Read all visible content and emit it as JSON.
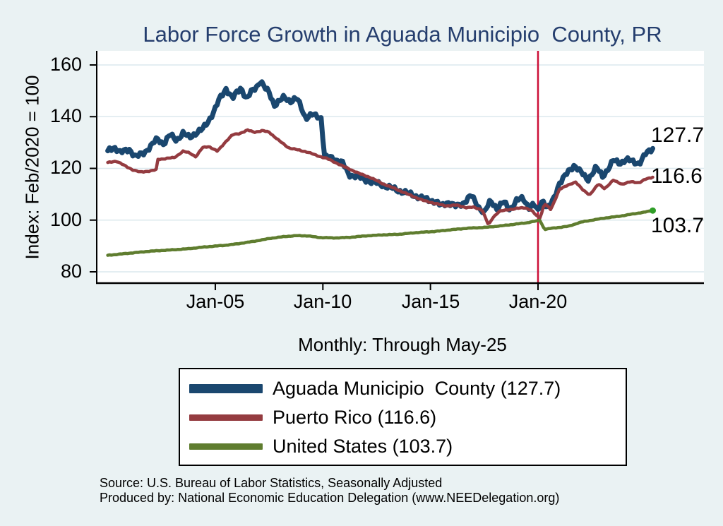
{
  "page": {
    "background": "#eaf2f3"
  },
  "chart_data": {
    "type": "line",
    "title": "Labor Force Growth in Aguada Municipio  County, PR",
    "title_color": "#253e6e",
    "subtitle": "Monthly: Through May-25",
    "ylabel": "Index: Feb/2020 = 100",
    "ylim": [
      80,
      160
    ],
    "x_range": [
      2000.0,
      2025.333
    ],
    "grid": true,
    "grid_color": "#dce8ee",
    "legend_position": "bottom",
    "yticks": [
      "160",
      "140",
      "120",
      "100",
      "80"
    ],
    "xticks": [
      {
        "t": 2005.0,
        "label": "Jan-05"
      },
      {
        "t": 2010.0,
        "label": "Jan-10"
      },
      {
        "t": 2015.0,
        "label": "Jan-15"
      },
      {
        "t": 2020.0,
        "label": "Jan-20"
      }
    ],
    "event_line": {
      "t": 2020.0,
      "color": "#cc1038"
    },
    "series": [
      {
        "name": "Aguada Municipio County",
        "legend_label": "Aguada Municipio  County (127.7)",
        "end_label": "127.7",
        "color": "#1a476f",
        "width": 7,
        "noise": 1.1,
        "points": [
          [
            2000.0,
            126.8
          ],
          [
            2000.3,
            128.3
          ],
          [
            2000.6,
            126.0
          ],
          [
            2001.0,
            127.5
          ],
          [
            2001.3,
            124.3
          ],
          [
            2001.7,
            126.2
          ],
          [
            2002.0,
            128.5
          ],
          [
            2002.3,
            131.5
          ],
          [
            2002.6,
            129.5
          ],
          [
            2002.9,
            133.0
          ],
          [
            2003.2,
            131.0
          ],
          [
            2003.5,
            133.5
          ],
          [
            2003.8,
            132.0
          ],
          [
            2004.0,
            133.2
          ],
          [
            2004.4,
            135.0
          ],
          [
            2004.8,
            140.0
          ],
          [
            2005.0,
            143.0
          ],
          [
            2005.2,
            147.0
          ],
          [
            2005.5,
            150.9
          ],
          [
            2005.8,
            146.8
          ],
          [
            2006.0,
            149.5
          ],
          [
            2006.2,
            151.4
          ],
          [
            2006.45,
            146.5
          ],
          [
            2006.7,
            150.0
          ],
          [
            2006.9,
            151.5
          ],
          [
            2007.1,
            153.8
          ],
          [
            2007.3,
            151.0
          ],
          [
            2007.5,
            149.5
          ],
          [
            2007.75,
            144.5
          ],
          [
            2008.0,
            146.0
          ],
          [
            2008.2,
            147.6
          ],
          [
            2008.5,
            146.0
          ],
          [
            2008.8,
            147.0
          ],
          [
            2009.0,
            143.5
          ],
          [
            2009.2,
            139.5
          ],
          [
            2009.5,
            140.7
          ],
          [
            2009.8,
            140.0
          ],
          [
            2009.92,
            139.5
          ],
          [
            2010.08,
            124.5
          ],
          [
            2010.4,
            124.0
          ],
          [
            2010.9,
            122.4
          ],
          [
            2011.2,
            117.5
          ],
          [
            2011.5,
            117.2
          ],
          [
            2012.0,
            115.5
          ],
          [
            2012.8,
            113.5
          ],
          [
            2013.5,
            111.5
          ],
          [
            2014.1,
            110.0
          ],
          [
            2014.6,
            108.5
          ],
          [
            2015.2,
            107.3
          ],
          [
            2015.5,
            105.5
          ],
          [
            2015.8,
            107.0
          ],
          [
            2016.2,
            105.2
          ],
          [
            2016.5,
            106.5
          ],
          [
            2016.9,
            109.5
          ],
          [
            2017.2,
            105.5
          ],
          [
            2017.5,
            102.8
          ],
          [
            2017.8,
            107.5
          ],
          [
            2018.1,
            104.5
          ],
          [
            2018.4,
            107.0
          ],
          [
            2018.7,
            104.2
          ],
          [
            2019.0,
            107.5
          ],
          [
            2019.3,
            108.5
          ],
          [
            2019.6,
            104.8
          ],
          [
            2019.8,
            106.0
          ],
          [
            2020.0,
            103.5
          ],
          [
            2020.2,
            108.0
          ],
          [
            2020.45,
            104.5
          ],
          [
            2020.7,
            107.5
          ],
          [
            2021.0,
            114.5
          ],
          [
            2021.3,
            117.5
          ],
          [
            2021.7,
            121.4
          ],
          [
            2022.0,
            118.5
          ],
          [
            2022.3,
            115.4
          ],
          [
            2022.7,
            120.5
          ],
          [
            2023.0,
            116.8
          ],
          [
            2023.5,
            123.0
          ],
          [
            2023.8,
            122.0
          ],
          [
            2024.1,
            123.5
          ],
          [
            2024.4,
            122.5
          ],
          [
            2024.7,
            122.0
          ],
          [
            2025.0,
            125.5
          ],
          [
            2025.333,
            127.7
          ]
        ]
      },
      {
        "name": "Puerto Rico",
        "legend_label": "Puerto Rico (116.6)",
        "end_label": "116.6",
        "color": "#943b40",
        "width": 4.5,
        "noise": 0.22,
        "points": [
          [
            2000.0,
            122.3
          ],
          [
            2000.4,
            122.8
          ],
          [
            2000.8,
            121.0
          ],
          [
            2001.2,
            119.3
          ],
          [
            2001.5,
            118.6
          ],
          [
            2002.0,
            119.0
          ],
          [
            2002.25,
            119.5
          ],
          [
            2002.33,
            123.5
          ],
          [
            2002.7,
            123.8
          ],
          [
            2003.1,
            124.2
          ],
          [
            2003.5,
            126.6
          ],
          [
            2003.8,
            126.0
          ],
          [
            2004.1,
            124.5
          ],
          [
            2004.4,
            128.0
          ],
          [
            2004.7,
            128.5
          ],
          [
            2005.1,
            126.6
          ],
          [
            2005.5,
            130.5
          ],
          [
            2005.8,
            133.0
          ],
          [
            2006.1,
            133.4
          ],
          [
            2006.5,
            134.8
          ],
          [
            2006.8,
            134.0
          ],
          [
            2007.2,
            134.6
          ],
          [
            2007.5,
            134.0
          ],
          [
            2008.0,
            130.5
          ],
          [
            2008.4,
            128.0
          ],
          [
            2008.9,
            127.0
          ],
          [
            2009.3,
            126.3
          ],
          [
            2009.7,
            125.0
          ],
          [
            2010.2,
            123.8
          ],
          [
            2010.9,
            121.0
          ],
          [
            2011.3,
            119.5
          ],
          [
            2011.7,
            118.0
          ],
          [
            2012.2,
            116.5
          ],
          [
            2012.8,
            114.0
          ],
          [
            2013.4,
            112.0
          ],
          [
            2014.1,
            109.5
          ],
          [
            2014.7,
            107.5
          ],
          [
            2015.2,
            106.5
          ],
          [
            2015.7,
            105.5
          ],
          [
            2016.2,
            105.8
          ],
          [
            2016.7,
            104.8
          ],
          [
            2017.0,
            105.0
          ],
          [
            2017.4,
            104.0
          ],
          [
            2017.7,
            98.0
          ],
          [
            2017.9,
            101.0
          ],
          [
            2018.2,
            103.4
          ],
          [
            2018.6,
            104.0
          ],
          [
            2019.0,
            104.5
          ],
          [
            2019.4,
            104.8
          ],
          [
            2019.7,
            103.8
          ],
          [
            2019.95,
            101.5
          ],
          [
            2020.1,
            100.8
          ],
          [
            2020.3,
            106.5
          ],
          [
            2020.6,
            104.0
          ],
          [
            2021.0,
            112.0
          ],
          [
            2021.4,
            113.5
          ],
          [
            2021.75,
            114.8
          ],
          [
            2022.1,
            111.5
          ],
          [
            2022.4,
            109.8
          ],
          [
            2022.8,
            113.9
          ],
          [
            2023.1,
            112.2
          ],
          [
            2023.5,
            115.4
          ],
          [
            2023.9,
            113.9
          ],
          [
            2024.3,
            114.8
          ],
          [
            2024.7,
            114.5
          ],
          [
            2025.0,
            115.8
          ],
          [
            2025.333,
            116.6
          ]
        ]
      },
      {
        "name": "United States",
        "legend_label": "United States (103.7)",
        "end_label": "103.7",
        "color": "#5f7d2f",
        "width": 4.5,
        "noise": 0.12,
        "end_dot_color": "#2f9e28",
        "points": [
          [
            2000.0,
            86.4
          ],
          [
            2001.0,
            87.2
          ],
          [
            2002.0,
            88.0
          ],
          [
            2003.0,
            88.5
          ],
          [
            2003.7,
            88.9
          ],
          [
            2004.5,
            89.6
          ],
          [
            2005.5,
            90.3
          ],
          [
            2006.0,
            90.8
          ],
          [
            2006.8,
            91.8
          ],
          [
            2007.6,
            93.0
          ],
          [
            2008.3,
            93.7
          ],
          [
            2008.8,
            94.0
          ],
          [
            2009.3,
            93.9
          ],
          [
            2009.8,
            93.3
          ],
          [
            2010.5,
            93.1
          ],
          [
            2011.2,
            93.3
          ],
          [
            2012.0,
            93.9
          ],
          [
            2012.8,
            94.3
          ],
          [
            2013.5,
            94.5
          ],
          [
            2014.4,
            95.2
          ],
          [
            2015.2,
            95.6
          ],
          [
            2016.0,
            96.3
          ],
          [
            2016.8,
            96.9
          ],
          [
            2017.6,
            97.2
          ],
          [
            2018.3,
            97.8
          ],
          [
            2019.0,
            98.5
          ],
          [
            2019.5,
            99.0
          ],
          [
            2020.0,
            99.8
          ],
          [
            2020.083,
            100.0
          ],
          [
            2020.3,
            96.4
          ],
          [
            2020.6,
            96.8
          ],
          [
            2021.0,
            97.2
          ],
          [
            2021.4,
            97.6
          ],
          [
            2022.0,
            99.2
          ],
          [
            2022.3,
            99.7
          ],
          [
            2023.1,
            100.8
          ],
          [
            2023.7,
            101.4
          ],
          [
            2024.0,
            101.8
          ],
          [
            2024.5,
            102.5
          ],
          [
            2024.9,
            103.0
          ],
          [
            2025.2,
            103.5
          ],
          [
            2025.333,
            103.7
          ]
        ]
      }
    ]
  },
  "footer": {
    "source_line1": "Source: U.S. Bureau of Labor Statistics, Seasonally Adjusted",
    "source_line2": "Produced by: National Economic Education Delegation (www.NEEDelegation.org)"
  }
}
